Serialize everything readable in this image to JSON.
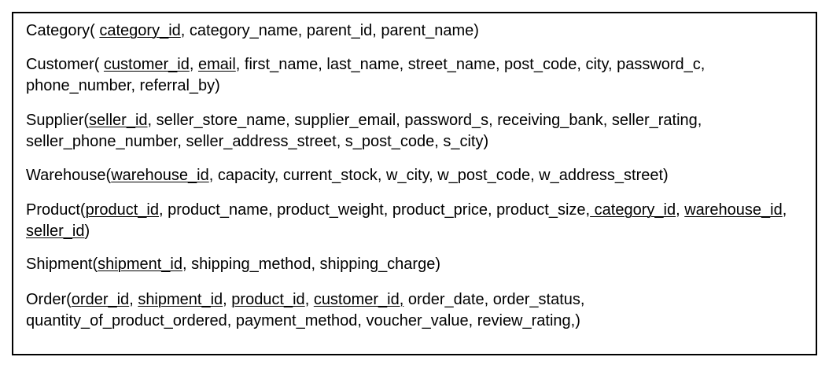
{
  "relations": {
    "category": {
      "name": "Category(",
      "pk": "category_id",
      "rest": ", category_name, parent_id, parent_name)"
    },
    "customer": {
      "name": "Customer(",
      "pk1": "customer_id",
      "sep1": ", ",
      "pk2": "email",
      "rest": ", first_name, last_name, street_name, post_code, city, password_c, phone_number, referral_by)"
    },
    "supplier": {
      "name": "Supplier(",
      "pk": "seller_id",
      "rest": ", seller_store_name, supplier_email, password_s, receiving_bank, seller_rating, seller_phone_number, seller_address_street, s_post_code, s_city)"
    },
    "warehouse": {
      "name": "Warehouse(",
      "pk": "warehouse_id",
      "rest": ", capacity, current_stock, w_city, w_post_code, w_address_street)"
    },
    "product": {
      "name": "Product(",
      "pk": "product_id",
      "mid": ", product_name, product_weight, product_price, product_size,",
      "fk1": " category_id",
      "sep1": ", ",
      "fk2": "warehouse_id",
      "sep2": ", ",
      "fk3": "seller_id",
      "end": ")"
    },
    "shipment": {
      "name": "Shipment(",
      "pk": "shipment_id",
      "rest": ", shipping_method, shipping_charge)"
    },
    "order": {
      "name": "Order(",
      "k1": "order_id",
      "sep1": ", ",
      "k2": "shipment_id",
      "sep2": ", ",
      "k3": "product_id",
      "sep3": ", ",
      "k4": "customer_id,",
      "rest": " order_date, order_status, quantity_of_product_ordered, payment_method, voucher_value, review_rating,)"
    }
  }
}
